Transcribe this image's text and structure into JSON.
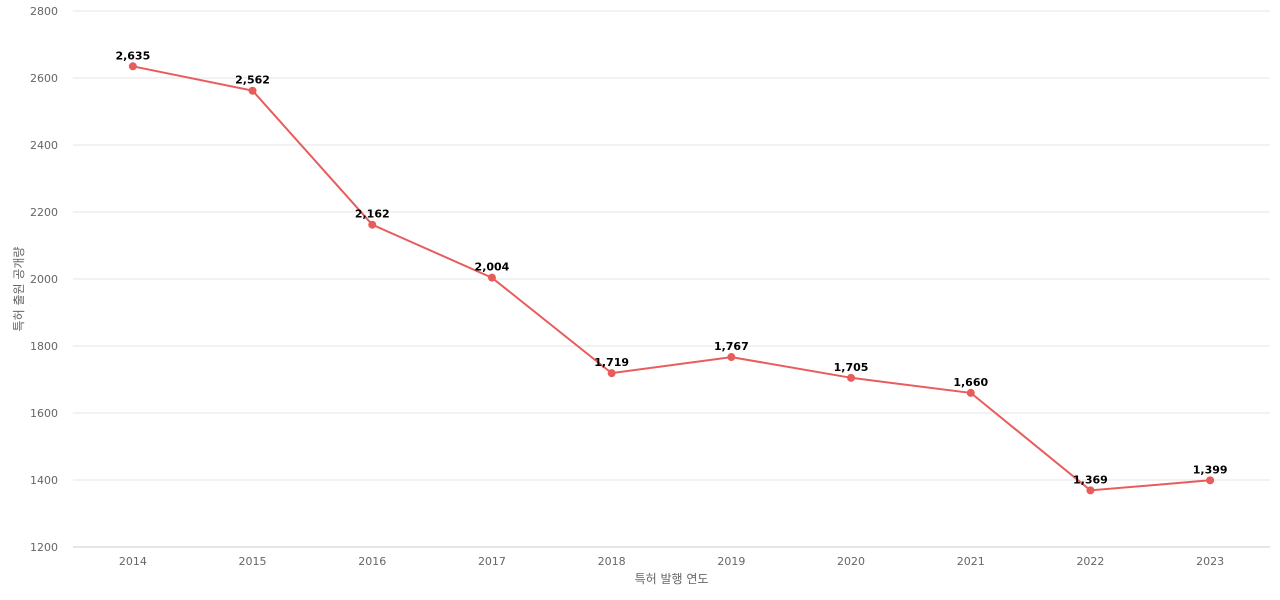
{
  "chart_data": {
    "type": "line",
    "categories": [
      "2014",
      "2015",
      "2016",
      "2017",
      "2018",
      "2019",
      "2020",
      "2021",
      "2022",
      "2023"
    ],
    "series": [
      {
        "values": [
          2635,
          2562,
          2162,
          2004,
          1719,
          1767,
          1705,
          1660,
          1369,
          1399
        ],
        "data_labels": [
          "2,635",
          "2,562",
          "2,162",
          "2,004",
          "1,719",
          "1,767",
          "1,705",
          "1,660",
          "1,369",
          "1,399"
        ],
        "color": "#e85c5c"
      }
    ],
    "xlabel": "특허 발행 연도",
    "ylabel": "특허 출원 공개량",
    "ylim": [
      1200,
      2800
    ],
    "yticks": [
      "1200",
      "1400",
      "1600",
      "1800",
      "2000",
      "2200",
      "2400",
      "2600",
      "2800"
    ],
    "grid": true,
    "legend": "none"
  }
}
